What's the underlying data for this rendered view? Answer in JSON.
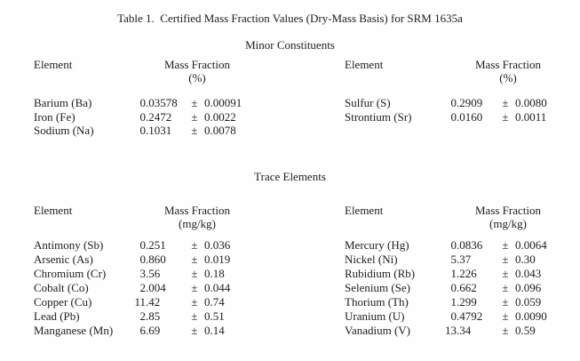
{
  "document": {
    "title": "Table 1.  Certified Mass Fraction Values (Dry-Mass Basis) for SRM 1635a",
    "pm": "±",
    "sections": [
      {
        "name": "Minor Constituents",
        "element_header": "Element",
        "value_header": "Mass Fraction",
        "unit": "(%)",
        "left_rows": [
          {
            "element": "Barium (Ba)",
            "value": "0.03578",
            "uncertainty": "0.00091"
          },
          {
            "element": "Iron (Fe)",
            "value": "0.2472",
            "uncertainty": "0.0022"
          },
          {
            "element": "Sodium (Na)",
            "value": "0.1031",
            "uncertainty": "0.0078"
          }
        ],
        "right_rows": [
          {
            "element": "Sulfur (S)",
            "value": "0.2909",
            "uncertainty": "0.0080"
          },
          {
            "element": "Strontium (Sr)",
            "value": "0.0160",
            "uncertainty": "0.0011"
          }
        ]
      },
      {
        "name": "Trace Elements",
        "element_header": "Element",
        "value_header": "Mass Fraction",
        "unit": "(mg/kg)",
        "left_rows": [
          {
            "element": "Antimony (Sb)",
            "value": "0.251",
            "uncertainty": "0.036"
          },
          {
            "element": "Arsenic (As)",
            "value": "0.860",
            "uncertainty": "0.019"
          },
          {
            "element": "Chromium (Cr)",
            "value": "3.56",
            "uncertainty": "0.18"
          },
          {
            "element": "Cobalt (Co)",
            "value": "2.004",
            "uncertainty": "0.044"
          },
          {
            "element": "Copper (Cu)",
            "value": "11.42",
            "uncertainty": "0.74"
          },
          {
            "element": "Lead (Pb)",
            "value": "2.85",
            "uncertainty": "0.51"
          },
          {
            "element": "Manganese (Mn)",
            "value": "6.69",
            "uncertainty": "0.14"
          }
        ],
        "right_rows": [
          {
            "element": "Mercury (Hg)",
            "value": "0.0836",
            "uncertainty": "0.0064"
          },
          {
            "element": "Nickel (Ni)",
            "value": "5.37",
            "uncertainty": "0.30"
          },
          {
            "element": "Rubidium (Rb)",
            "value": "1.226",
            "uncertainty": "0.043"
          },
          {
            "element": "Selenium (Se)",
            "value": "0.662",
            "uncertainty": "0.096"
          },
          {
            "element": "Thorium (Th)",
            "value": "1.299",
            "uncertainty": "0.059"
          },
          {
            "element": "Uranium (U)",
            "value": "0.4792",
            "uncertainty": "0.0090"
          },
          {
            "element": "Vanadium (V)",
            "value": "13.34",
            "uncertainty": "0.59"
          }
        ]
      }
    ]
  }
}
